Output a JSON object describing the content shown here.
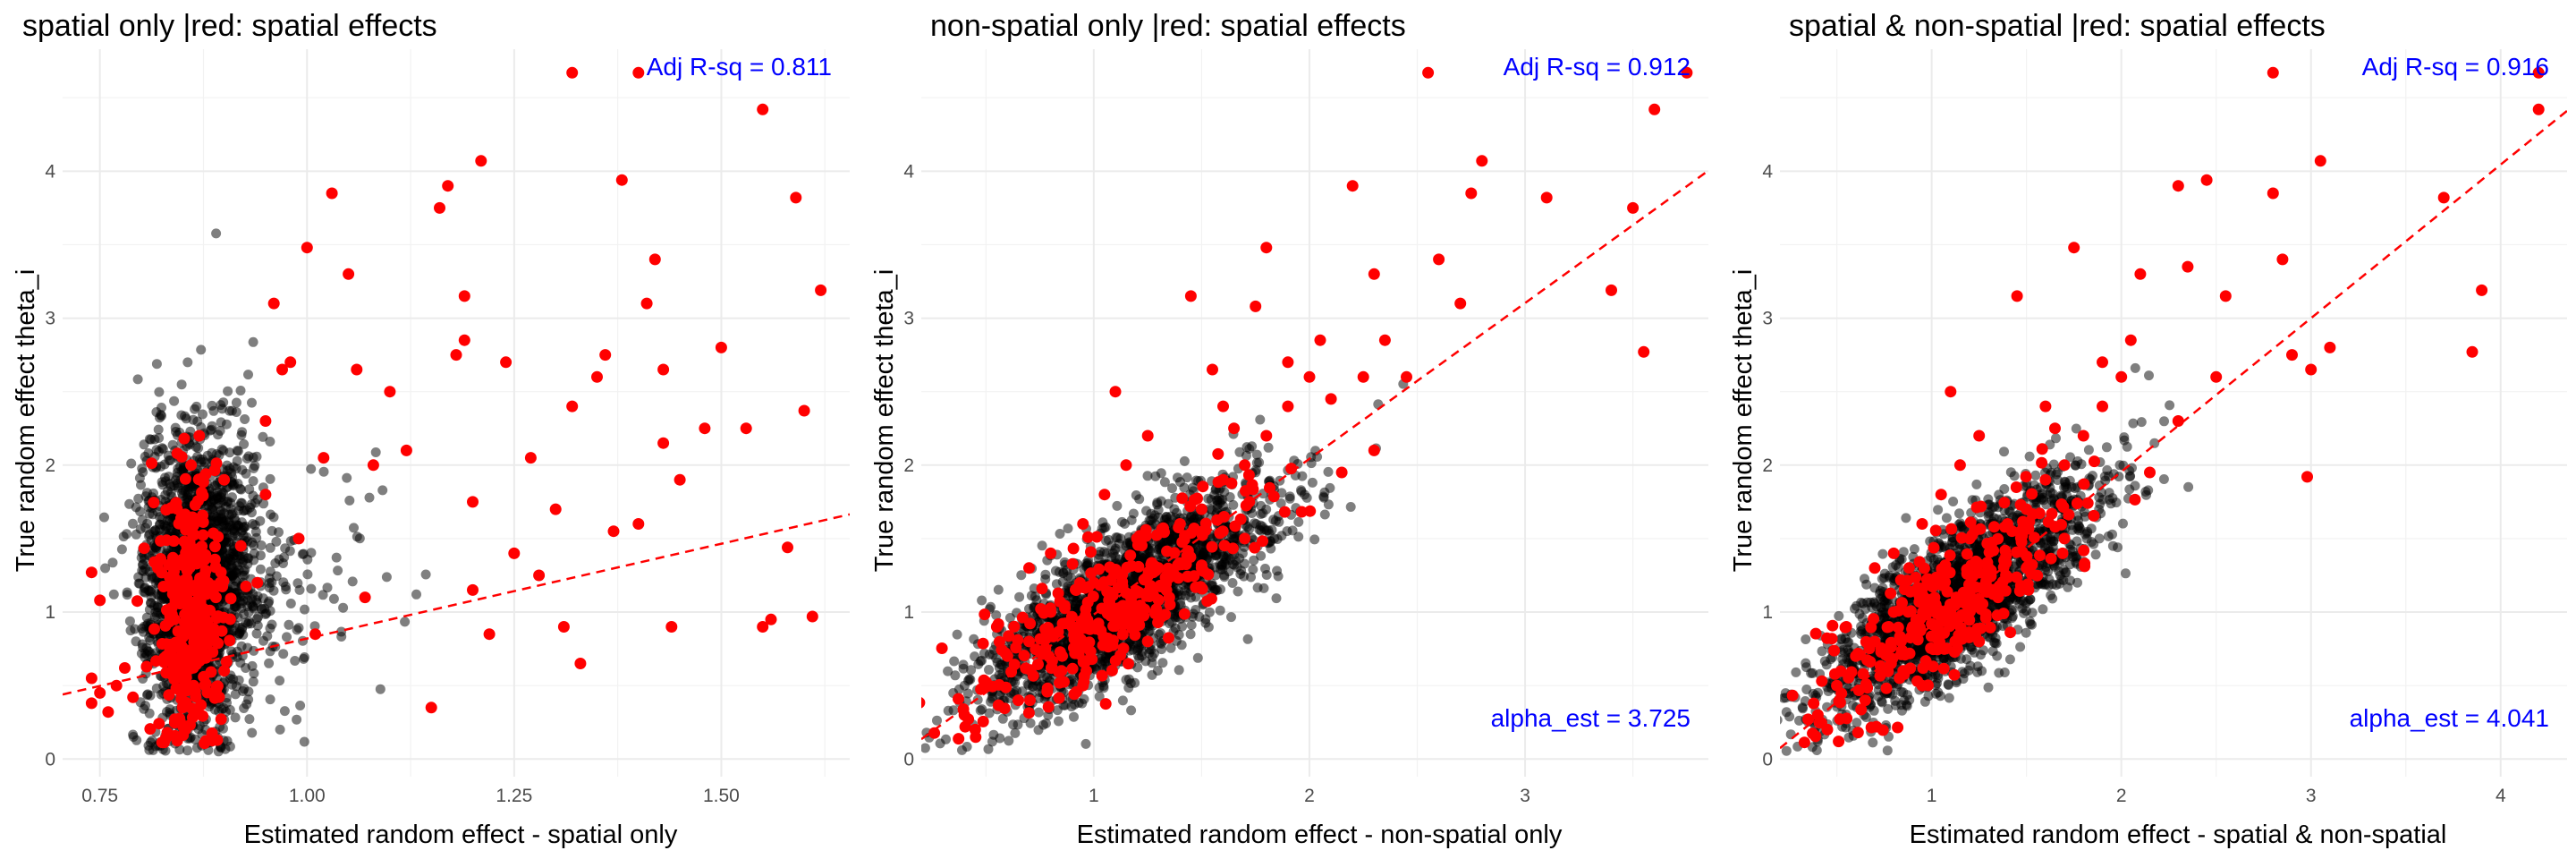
{
  "chart_data": [
    {
      "type": "scatter",
      "title": "spatial only |red: spatial effects",
      "xlabel": "Estimated random effect - spatial only",
      "ylabel": "True random effect theta_i",
      "xlim": [
        0.705,
        1.655
      ],
      "ylim": [
        -0.12,
        4.83
      ],
      "xticks": [
        0.75,
        1.0,
        1.25,
        1.5
      ],
      "xticklabels": [
        "0.75",
        "1.00",
        "1.25",
        "1.50"
      ],
      "yticks": [
        0,
        1,
        2,
        3,
        4
      ],
      "yticklabels": [
        "0",
        "1",
        "2",
        "3",
        "4"
      ],
      "grid": true,
      "annotations": [
        {
          "text": "Adj R-sq = 0.811",
          "position": "top-right",
          "color": "#0000ff"
        }
      ],
      "fit_line": {
        "color": "#ff0000",
        "style": "dashed",
        "intercept": -0.47,
        "slope": 1.29
      },
      "point_colors": {
        "non_spatial": "#000000",
        "spatial": "#ff0000"
      },
      "point_cloud": {
        "x_mean": 0.87,
        "x_sd": 0.035,
        "y_mean": 1.2,
        "y_sd": 0.5,
        "count": 2000
      },
      "series": [
        {
          "name": "spatial effects",
          "points": [
            [
              0.74,
              1.27
            ],
            [
              0.74,
              0.55
            ],
            [
              0.74,
              0.38
            ],
            [
              0.75,
              0.45
            ],
            [
              0.76,
              0.32
            ],
            [
              0.75,
              1.08
            ],
            [
              0.78,
              0.62
            ],
            [
              0.79,
              0.42
            ],
            [
              0.82,
              1.3
            ],
            [
              0.84,
              0.95
            ],
            [
              0.86,
              1.6
            ],
            [
              0.88,
              0.8
            ],
            [
              0.85,
              0.35
            ],
            [
              0.87,
              2.2
            ],
            [
              0.89,
              1.1
            ],
            [
              0.9,
              0.6
            ],
            [
              0.86,
              2.0
            ],
            [
              0.92,
              1.45
            ],
            [
              0.94,
              1.2
            ],
            [
              0.95,
              1.8
            ],
            [
              0.95,
              2.3
            ],
            [
              0.96,
              3.1
            ],
            [
              0.97,
              2.65
            ],
            [
              0.98,
              2.7
            ],
            [
              0.99,
              1.5
            ],
            [
              1.0,
              3.48
            ],
            [
              1.01,
              0.85
            ],
            [
              1.02,
              2.05
            ],
            [
              1.03,
              3.85
            ],
            [
              1.05,
              3.3
            ],
            [
              1.06,
              2.65
            ],
            [
              1.07,
              1.1
            ],
            [
              1.08,
              2.0
            ],
            [
              1.1,
              2.5
            ],
            [
              1.12,
              2.1
            ],
            [
              1.15,
              0.35
            ],
            [
              1.16,
              3.75
            ],
            [
              1.17,
              3.9
            ],
            [
              1.18,
              2.75
            ],
            [
              1.19,
              3.15
            ],
            [
              1.19,
              2.85
            ],
            [
              1.2,
              1.75
            ],
            [
              1.2,
              1.15
            ],
            [
              1.21,
              4.07
            ],
            [
              1.22,
              0.85
            ],
            [
              1.24,
              2.7
            ],
            [
              1.25,
              1.4
            ],
            [
              1.27,
              2.05
            ],
            [
              1.28,
              1.25
            ],
            [
              1.3,
              1.7
            ],
            [
              1.31,
              0.9
            ],
            [
              1.32,
              2.4
            ],
            [
              1.33,
              0.65
            ],
            [
              1.32,
              4.67
            ],
            [
              1.35,
              2.6
            ],
            [
              1.36,
              2.75
            ],
            [
              1.37,
              1.55
            ],
            [
              1.38,
              3.94
            ],
            [
              1.4,
              1.6
            ],
            [
              1.4,
              4.67
            ],
            [
              1.41,
              3.1
            ],
            [
              1.42,
              3.4
            ],
            [
              1.43,
              2.15
            ],
            [
              1.43,
              2.65
            ],
            [
              1.44,
              0.9
            ],
            [
              1.45,
              1.9
            ],
            [
              1.48,
              2.25
            ],
            [
              1.5,
              2.8
            ],
            [
              1.53,
              2.25
            ],
            [
              1.55,
              4.42
            ],
            [
              1.56,
              0.95
            ],
            [
              1.59,
              3.82
            ],
            [
              1.6,
              2.37
            ],
            [
              1.61,
              0.97
            ],
            [
              1.62,
              3.19
            ],
            [
              1.58,
              1.44
            ],
            [
              1.55,
              0.9
            ],
            [
              0.77,
              0.5
            ],
            [
              0.83,
              0.7
            ],
            [
              0.9,
              1.9
            ]
          ]
        }
      ]
    },
    {
      "type": "scatter",
      "title": "non-spatial only |red: spatial effects",
      "xlabel": "Estimated random effect - non-spatial only",
      "ylabel": "True random effect theta_i",
      "xlim": [
        0.2,
        3.85
      ],
      "ylim": [
        -0.12,
        4.83
      ],
      "xticks": [
        1,
        2,
        3
      ],
      "xticklabels": [
        "1",
        "2",
        "3"
      ],
      "yticks": [
        0,
        1,
        2,
        3,
        4
      ],
      "yticklabels": [
        "0",
        "1",
        "2",
        "3",
        "4"
      ],
      "grid": true,
      "annotations": [
        {
          "text": "Adj R-sq = 0.912",
          "position": "top-right",
          "color": "#0000ff"
        },
        {
          "text": "alpha_est = 3.725",
          "position": "bottom-right",
          "color": "#0000ff"
        }
      ],
      "fit_line": {
        "color": "#ff0000",
        "style": "dashed",
        "intercept": -0.077,
        "slope": 1.06
      },
      "point_colors": {
        "non_spatial": "#000000",
        "spatial": "#ff0000"
      },
      "point_cloud": {
        "x_mean": 0.85,
        "x_sd": 0.4,
        "y_mean": 0.9,
        "y_sd": 0.5,
        "count": 2000
      },
      "series": [
        {
          "name": "spatial effects",
          "points": [
            [
              0.4,
              0.3
            ],
            [
              0.5,
              0.5
            ],
            [
              0.6,
              0.7
            ],
            [
              0.7,
              0.8
            ],
            [
              0.8,
              1.0
            ],
            [
              0.9,
              0.9
            ],
            [
              1.0,
              1.2
            ],
            [
              1.1,
              1.0
            ],
            [
              1.2,
              1.5
            ],
            [
              1.3,
              1.3
            ],
            [
              1.4,
              1.6
            ],
            [
              1.5,
              1.7
            ],
            [
              1.6,
              1.9
            ],
            [
              1.7,
              2.0
            ],
            [
              1.8,
              2.2
            ],
            [
              1.9,
              2.4
            ],
            [
              2.0,
              2.6
            ],
            [
              1.55,
              2.65
            ],
            [
              1.75,
              3.08
            ],
            [
              1.8,
              3.48
            ],
            [
              1.45,
              3.15
            ],
            [
              2.1,
              2.45
            ],
            [
              2.2,
              3.9
            ],
            [
              2.25,
              2.6
            ],
            [
              2.35,
              2.85
            ],
            [
              2.55,
              4.67
            ],
            [
              2.6,
              3.4
            ],
            [
              2.7,
              3.1
            ],
            [
              2.75,
              3.85
            ],
            [
              2.8,
              4.07
            ],
            [
              3.1,
              3.82
            ],
            [
              3.4,
              3.19
            ],
            [
              3.5,
              3.75
            ],
            [
              3.55,
              2.77
            ],
            [
              3.6,
              4.42
            ],
            [
              3.75,
              4.67
            ],
            [
              1.15,
              2.0
            ],
            [
              0.95,
              1.6
            ],
            [
              1.35,
              1.1
            ],
            [
              0.7,
              1.3
            ],
            [
              0.55,
              0.9
            ],
            [
              0.65,
              0.4
            ],
            [
              0.85,
              0.6
            ],
            [
              1.25,
              2.2
            ],
            [
              1.05,
              1.8
            ],
            [
              1.6,
              2.4
            ],
            [
              2.05,
              2.85
            ],
            [
              2.3,
              3.3
            ],
            [
              1.9,
              2.7
            ],
            [
              0.45,
              0.2
            ],
            [
              0.8,
              1.4
            ],
            [
              1.5,
              1.3
            ],
            [
              1.7,
              1.5
            ],
            [
              1.25,
              0.8
            ],
            [
              0.95,
              0.5
            ],
            [
              1.1,
              2.5
            ],
            [
              2.15,
              1.95
            ],
            [
              2.3,
              2.1
            ],
            [
              2.45,
              2.6
            ],
            [
              1.65,
              2.25
            ]
          ]
        }
      ]
    },
    {
      "type": "scatter",
      "title": "spatial & non-spatial |red: spatial effects",
      "xlabel": "Estimated random effect - spatial & non-spatial",
      "ylabel": "True random effect theta_i",
      "xlim": [
        0.2,
        4.35
      ],
      "ylim": [
        -0.12,
        4.83
      ],
      "xticks": [
        1,
        2,
        3,
        4
      ],
      "xticklabels": [
        "1",
        "2",
        "3",
        "4"
      ],
      "yticks": [
        0,
        1,
        2,
        3,
        4
      ],
      "yticklabels": [
        "0",
        "1",
        "2",
        "3",
        "4"
      ],
      "grid": true,
      "annotations": [
        {
          "text": "Adj R-sq = 0.916",
          "position": "top-right",
          "color": "#0000ff"
        },
        {
          "text": "alpha_est = 4.041",
          "position": "bottom-right",
          "color": "#0000ff"
        }
      ],
      "fit_line": {
        "color": "#ff0000",
        "style": "dashed",
        "intercept": -0.135,
        "slope": 1.045
      },
      "point_colors": {
        "non_spatial": "#000000",
        "spatial": "#ff0000"
      },
      "point_cloud": {
        "x_mean": 0.85,
        "x_sd": 0.42,
        "y_mean": 0.9,
        "y_sd": 0.5,
        "count": 2000
      },
      "series": [
        {
          "name": "spatial effects",
          "points": [
            [
              0.4,
              0.3
            ],
            [
              0.5,
              0.5
            ],
            [
              0.6,
              0.7
            ],
            [
              0.7,
              0.8
            ],
            [
              0.8,
              1.0
            ],
            [
              0.9,
              0.9
            ],
            [
              1.0,
              1.2
            ],
            [
              1.1,
              1.0
            ],
            [
              1.2,
              1.5
            ],
            [
              1.3,
              1.3
            ],
            [
              1.4,
              1.6
            ],
            [
              1.5,
              1.7
            ],
            [
              1.6,
              1.9
            ],
            [
              1.7,
              2.0
            ],
            [
              1.8,
              2.2
            ],
            [
              1.9,
              2.4
            ],
            [
              2.0,
              2.6
            ],
            [
              1.45,
              3.15
            ],
            [
              1.75,
              3.48
            ],
            [
              2.1,
              3.3
            ],
            [
              2.3,
              3.9
            ],
            [
              2.45,
              3.94
            ],
            [
              2.55,
              3.15
            ],
            [
              2.8,
              4.67
            ],
            [
              2.8,
              3.85
            ],
            [
              2.85,
              3.4
            ],
            [
              2.9,
              2.75
            ],
            [
              3.0,
              2.65
            ],
            [
              3.05,
              4.07
            ],
            [
              3.1,
              2.8
            ],
            [
              3.7,
              3.82
            ],
            [
              3.85,
              2.77
            ],
            [
              3.9,
              3.19
            ],
            [
              4.2,
              4.42
            ],
            [
              4.2,
              4.67
            ],
            [
              2.98,
              1.92
            ],
            [
              1.15,
              2.0
            ],
            [
              0.95,
              1.6
            ],
            [
              1.35,
              1.1
            ],
            [
              0.7,
              1.3
            ],
            [
              0.55,
              0.9
            ],
            [
              0.65,
              0.4
            ],
            [
              0.85,
              0.6
            ],
            [
              1.25,
              2.2
            ],
            [
              1.05,
              1.8
            ],
            [
              1.6,
              2.4
            ],
            [
              2.05,
              2.85
            ],
            [
              2.35,
              3.35
            ],
            [
              1.9,
              2.7
            ],
            [
              0.45,
              0.2
            ],
            [
              0.8,
              1.4
            ],
            [
              1.5,
              1.3
            ],
            [
              1.7,
              1.5
            ],
            [
              1.25,
              0.8
            ],
            [
              0.95,
              0.5
            ],
            [
              1.1,
              2.5
            ],
            [
              2.15,
              1.95
            ],
            [
              2.3,
              2.3
            ],
            [
              2.5,
              2.6
            ],
            [
              1.65,
              2.25
            ]
          ]
        }
      ]
    }
  ]
}
